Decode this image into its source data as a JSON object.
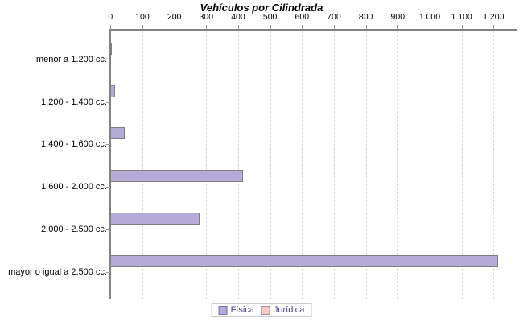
{
  "title": "Vehículos por Cilindrada",
  "chart_data": {
    "type": "bar",
    "orientation": "horizontal",
    "title": "Vehículos por Cilindrada",
    "categories": [
      "menor a 1.200 cc.",
      "1.200 - 1.400 cc.",
      "1.400 - 1.600 cc.",
      "1.600 - 2.000 cc.",
      "2.000 - 2.500 cc.",
      "mayor o igual a 2.500 cc."
    ],
    "series": [
      {
        "key": "fisica",
        "name": "Física",
        "values": [
          5,
          15,
          45,
          415,
          280,
          1215
        ],
        "fill": "#b6abd7",
        "border": "#7f7f7f"
      },
      {
        "key": "juridica",
        "name": "Jurídica",
        "values": [
          0,
          0,
          0,
          0,
          0,
          0
        ],
        "fill": "#f9caca",
        "border": "#9b8f93"
      }
    ],
    "xlim": [
      0,
      1200
    ],
    "x_tick_values": [
      0,
      100,
      200,
      300,
      400,
      500,
      600,
      700,
      800,
      900,
      1000,
      1100,
      1200
    ],
    "x_tick_labels": [
      "0",
      "100",
      "200",
      "300",
      "400",
      "500",
      "600",
      "700",
      "800",
      "900",
      "1.000",
      "1.100",
      "1.200"
    ],
    "grid": "vertical-dashed",
    "axis_position": "top",
    "legend_position": "bottom"
  },
  "legend": {
    "items": [
      {
        "label": "Física",
        "color": "#b6abd7",
        "border": "#7a74a8"
      },
      {
        "label": "Jurídica",
        "color": "#f9caca",
        "border": "#9b8f93"
      }
    ]
  },
  "colors": {
    "axis": "#828282",
    "grid": "#d8d8d8",
    "tick_label": "#000000",
    "category_label": "#000000",
    "legend_text": "#433a85",
    "background": "#ffffff"
  }
}
